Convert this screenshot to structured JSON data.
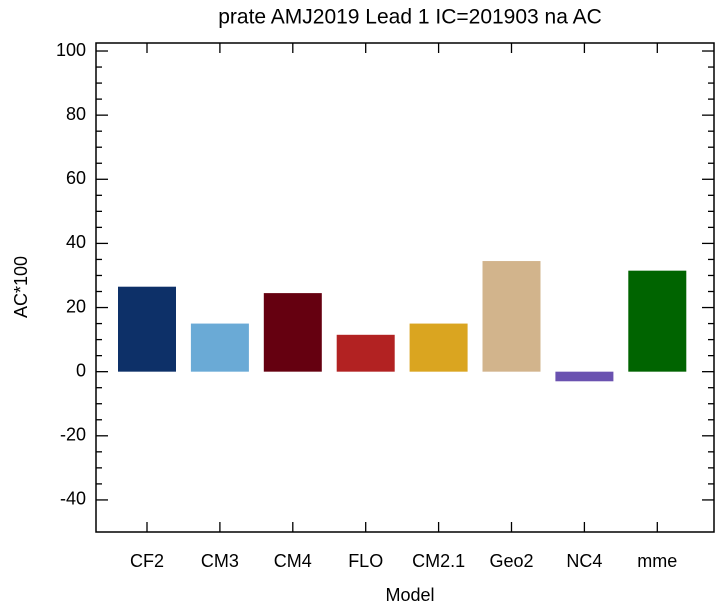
{
  "chart_data": {
    "type": "bar",
    "title": "prate AMJ2019 Lead 1 IC=201903 na AC",
    "x_label": "Model",
    "y_label": "AC*100",
    "categories": [
      "CF2",
      "CM3",
      "CM4",
      "FLO",
      "CM2.1",
      "Geo2",
      "NC4",
      "mme"
    ],
    "values": [
      26.5,
      15,
      24.5,
      11.5,
      15,
      34.5,
      -3,
      31.5
    ],
    "colors": [
      "#0d3068",
      "#6aaad6",
      "#650010",
      "#b22222",
      "#daa520",
      "#d2b48c",
      "#6a52b0",
      "#006400"
    ],
    "ylim": [
      -50,
      102.5
    ],
    "yticks": [
      -40,
      -20,
      0,
      20,
      40,
      60,
      80,
      100
    ]
  }
}
